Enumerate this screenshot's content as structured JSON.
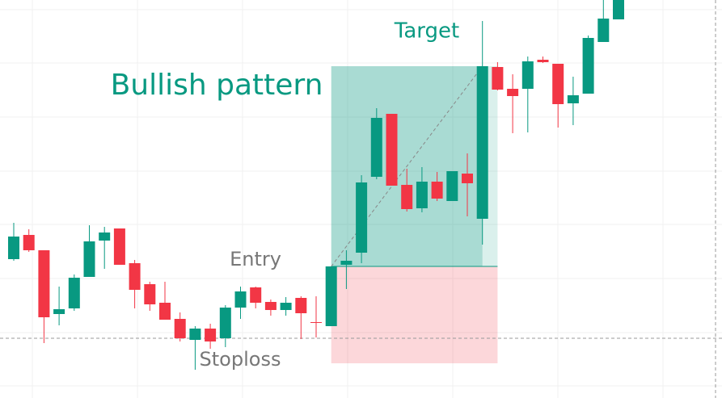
{
  "chart_data": {
    "type": "candlestick",
    "categories": [
      null,
      null,
      null,
      null,
      null,
      null,
      null,
      null,
      null,
      null,
      null,
      null,
      null,
      null,
      null,
      null,
      null,
      null,
      null,
      null,
      null,
      null,
      null,
      null,
      null,
      null,
      null,
      null,
      null,
      null,
      null,
      null,
      null,
      null,
      null,
      null,
      null,
      null,
      null,
      null,
      null
    ],
    "open": [
      172,
      202,
      183,
      104,
      111,
      150,
      195,
      210,
      167,
      141,
      118,
      98,
      72,
      86,
      74,
      112,
      137,
      119,
      109,
      124,
      94,
      89,
      165,
      180,
      274,
      352,
      264,
      235,
      268,
      244,
      278,
      222,
      410,
      383,
      383,
      419,
      414,
      365,
      377,
      441,
      469
    ],
    "close": [
      200,
      183,
      100,
      110,
      149,
      194,
      205,
      165,
      134,
      116,
      97,
      74,
      86,
      70,
      112,
      132,
      118,
      109,
      118,
      105,
      93,
      163,
      170,
      267,
      347,
      263,
      234,
      268,
      247,
      281,
      266,
      411,
      382,
      374,
      417,
      416,
      364,
      375,
      446,
      470,
      493
    ],
    "high": [
      217,
      209,
      183,
      138,
      153,
      214,
      212,
      210,
      171,
      144,
      144,
      106,
      89,
      92,
      115,
      138,
      138,
      122,
      125,
      126,
      126,
      163,
      183,
      276,
      359,
      352,
      284,
      286,
      280,
      281,
      303,
      467,
      416,
      401,
      423,
      423,
      414,
      398,
      449,
      493,
      493
    ],
    "low": [
      170,
      181,
      68,
      90,
      108,
      150,
      160,
      165,
      111,
      108,
      97,
      70,
      35,
      61,
      63,
      98,
      111,
      102,
      102,
      73,
      75,
      89,
      135,
      167,
      271,
      263,
      231,
      230,
      244,
      244,
      225,
      190,
      381,
      328,
      329,
      415,
      335,
      338,
      377,
      441,
      469
    ],
    "up_color": "#089981",
    "down_color": "#f23645",
    "ylim": [
      0,
      493
    ],
    "position": {
      "start": 21,
      "end": 32,
      "entry": 163,
      "target": 411,
      "stoploss": 43
    },
    "price_line": 74,
    "labels": {
      "target": "Target",
      "pattern": "Bullish pattern",
      "entry": "Entry",
      "stoploss": "Stoploss"
    }
  }
}
